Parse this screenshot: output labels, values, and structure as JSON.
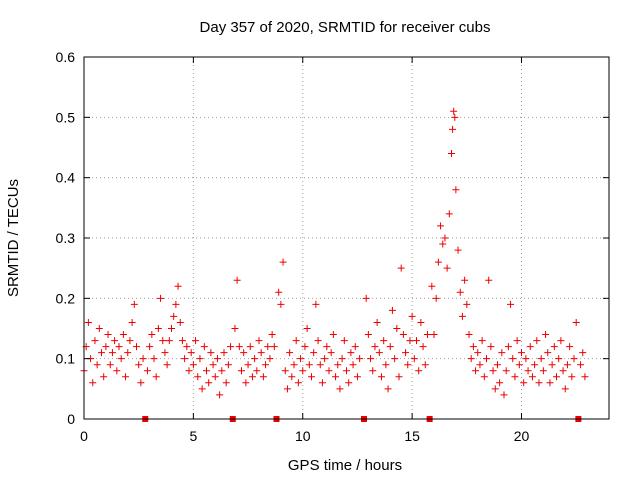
{
  "chart_data": {
    "type": "scatter",
    "title": "Day 357 of 2020, SRMTID for receiver cubs",
    "xlabel": "GPS time / hours",
    "ylabel": "SRMTID / TECUs",
    "xlim": [
      0,
      24
    ],
    "ylim": [
      0,
      0.6
    ],
    "xticks": [
      "0",
      "5",
      "10",
      "15",
      "20"
    ],
    "xtick_values": [
      0,
      5,
      10,
      15,
      20
    ],
    "yticks": [
      "0",
      "0.1",
      "0.2",
      "0.3",
      "0.4",
      "0.5",
      "0.6"
    ],
    "ytick_values": [
      0,
      0.1,
      0.2,
      0.3,
      0.4,
      0.5,
      0.6
    ],
    "grid": true,
    "marker": "plus",
    "color": "#ee0000",
    "data_gap_markers_x": [
      2.8,
      6.8,
      8.8,
      12.8,
      15.8,
      22.6
    ],
    "series": [
      {
        "name": "SRMTID",
        "points": [
          [
            0.0,
            0.08
          ],
          [
            0.1,
            0.12
          ],
          [
            0.2,
            0.16
          ],
          [
            0.3,
            0.1
          ],
          [
            0.4,
            0.06
          ],
          [
            0.5,
            0.13
          ],
          [
            0.6,
            0.09
          ],
          [
            0.7,
            0.15
          ],
          [
            0.8,
            0.11
          ],
          [
            0.9,
            0.07
          ],
          [
            1.0,
            0.12
          ],
          [
            1.1,
            0.14
          ],
          [
            1.2,
            0.09
          ],
          [
            1.3,
            0.11
          ],
          [
            1.4,
            0.13
          ],
          [
            1.5,
            0.08
          ],
          [
            1.6,
            0.12
          ],
          [
            1.7,
            0.1
          ],
          [
            1.8,
            0.14
          ],
          [
            1.9,
            0.07
          ],
          [
            2.0,
            0.11
          ],
          [
            2.1,
            0.13
          ],
          [
            2.2,
            0.16
          ],
          [
            2.3,
            0.19
          ],
          [
            2.4,
            0.12
          ],
          [
            2.5,
            0.09
          ],
          [
            2.6,
            0.06
          ],
          [
            2.7,
            0.1
          ],
          [
            2.9,
            0.08
          ],
          [
            3.0,
            0.12
          ],
          [
            3.1,
            0.14
          ],
          [
            3.2,
            0.1
          ],
          [
            3.3,
            0.07
          ],
          [
            3.4,
            0.15
          ],
          [
            3.5,
            0.2
          ],
          [
            3.6,
            0.13
          ],
          [
            3.7,
            0.11
          ],
          [
            3.8,
            0.09
          ],
          [
            3.9,
            0.13
          ],
          [
            4.0,
            0.15
          ],
          [
            4.1,
            0.17
          ],
          [
            4.2,
            0.19
          ],
          [
            4.3,
            0.22
          ],
          [
            4.4,
            0.16
          ],
          [
            4.5,
            0.13
          ],
          [
            4.6,
            0.1
          ],
          [
            4.7,
            0.12
          ],
          [
            4.8,
            0.08
          ],
          [
            4.9,
            0.11
          ],
          [
            5.0,
            0.09
          ],
          [
            5.1,
            0.13
          ],
          [
            5.2,
            0.07
          ],
          [
            5.3,
            0.1
          ],
          [
            5.4,
            0.05
          ],
          [
            5.5,
            0.12
          ],
          [
            5.6,
            0.08
          ],
          [
            5.7,
            0.06
          ],
          [
            5.8,
            0.11
          ],
          [
            5.9,
            0.09
          ],
          [
            6.0,
            0.07
          ],
          [
            6.1,
            0.1
          ],
          [
            6.2,
            0.04
          ],
          [
            6.3,
            0.08
          ],
          [
            6.4,
            0.11
          ],
          [
            6.5,
            0.06
          ],
          [
            6.6,
            0.09
          ],
          [
            6.7,
            0.12
          ],
          [
            6.9,
            0.15
          ],
          [
            7.0,
            0.23
          ],
          [
            7.1,
            0.12
          ],
          [
            7.2,
            0.08
          ],
          [
            7.3,
            0.11
          ],
          [
            7.4,
            0.06
          ],
          [
            7.5,
            0.09
          ],
          [
            7.6,
            0.12
          ],
          [
            7.7,
            0.07
          ],
          [
            7.8,
            0.1
          ],
          [
            7.9,
            0.08
          ],
          [
            8.0,
            0.13
          ],
          [
            8.1,
            0.11
          ],
          [
            8.2,
            0.07
          ],
          [
            8.3,
            0.09
          ],
          [
            8.4,
            0.12
          ],
          [
            8.5,
            0.1
          ],
          [
            8.6,
            0.14
          ],
          [
            8.7,
            0.12
          ],
          [
            8.9,
            0.21
          ],
          [
            9.0,
            0.19
          ],
          [
            9.1,
            0.26
          ],
          [
            9.2,
            0.08
          ],
          [
            9.3,
            0.05
          ],
          [
            9.4,
            0.11
          ],
          [
            9.5,
            0.07
          ],
          [
            9.6,
            0.09
          ],
          [
            9.7,
            0.13
          ],
          [
            9.8,
            0.06
          ],
          [
            9.9,
            0.1
          ],
          [
            10.0,
            0.08
          ],
          [
            10.1,
            0.12
          ],
          [
            10.2,
            0.15
          ],
          [
            10.3,
            0.09
          ],
          [
            10.4,
            0.07
          ],
          [
            10.5,
            0.11
          ],
          [
            10.6,
            0.19
          ],
          [
            10.7,
            0.13
          ],
          [
            10.8,
            0.09
          ],
          [
            10.9,
            0.06
          ],
          [
            11.0,
            0.1
          ],
          [
            11.1,
            0.12
          ],
          [
            11.2,
            0.08
          ],
          [
            11.3,
            0.11
          ],
          [
            11.4,
            0.14
          ],
          [
            11.5,
            0.07
          ],
          [
            11.6,
            0.09
          ],
          [
            11.7,
            0.05
          ],
          [
            11.8,
            0.1
          ],
          [
            11.9,
            0.13
          ],
          [
            12.0,
            0.08
          ],
          [
            12.1,
            0.06
          ],
          [
            12.2,
            0.11
          ],
          [
            12.3,
            0.09
          ],
          [
            12.4,
            0.12
          ],
          [
            12.5,
            0.07
          ],
          [
            12.6,
            0.1
          ],
          [
            12.9,
            0.2
          ],
          [
            13.0,
            0.14
          ],
          [
            13.1,
            0.1
          ],
          [
            13.2,
            0.08
          ],
          [
            13.3,
            0.12
          ],
          [
            13.4,
            0.16
          ],
          [
            13.5,
            0.11
          ],
          [
            13.6,
            0.07
          ],
          [
            13.7,
            0.13
          ],
          [
            13.8,
            0.09
          ],
          [
            13.9,
            0.05
          ],
          [
            14.0,
            0.12
          ],
          [
            14.1,
            0.18
          ],
          [
            14.2,
            0.1
          ],
          [
            14.3,
            0.15
          ],
          [
            14.4,
            0.07
          ],
          [
            14.5,
            0.25
          ],
          [
            14.6,
            0.14
          ],
          [
            14.7,
            0.11
          ],
          [
            14.8,
            0.09
          ],
          [
            14.9,
            0.13
          ],
          [
            15.0,
            0.17
          ],
          [
            15.1,
            0.1
          ],
          [
            15.2,
            0.13
          ],
          [
            15.3,
            0.08
          ],
          [
            15.4,
            0.16
          ],
          [
            15.5,
            0.12
          ],
          [
            15.6,
            0.09
          ],
          [
            15.7,
            0.14
          ],
          [
            15.9,
            0.22
          ],
          [
            16.0,
            0.14
          ],
          [
            16.1,
            0.2
          ],
          [
            16.2,
            0.26
          ],
          [
            16.3,
            0.32
          ],
          [
            16.4,
            0.29
          ],
          [
            16.5,
            0.3
          ],
          [
            16.6,
            0.25
          ],
          [
            16.7,
            0.34
          ],
          [
            16.8,
            0.44
          ],
          [
            16.85,
            0.48
          ],
          [
            16.9,
            0.51
          ],
          [
            16.95,
            0.5
          ],
          [
            17.0,
            0.38
          ],
          [
            17.1,
            0.28
          ],
          [
            17.2,
            0.21
          ],
          [
            17.3,
            0.17
          ],
          [
            17.4,
            0.23
          ],
          [
            17.5,
            0.19
          ],
          [
            17.6,
            0.14
          ],
          [
            17.7,
            0.1
          ],
          [
            17.8,
            0.12
          ],
          [
            17.9,
            0.08
          ],
          [
            18.0,
            0.11
          ],
          [
            18.1,
            0.09
          ],
          [
            18.2,
            0.13
          ],
          [
            18.3,
            0.07
          ],
          [
            18.4,
            0.1
          ],
          [
            18.5,
            0.23
          ],
          [
            18.6,
            0.12
          ],
          [
            18.7,
            0.08
          ],
          [
            18.8,
            0.05
          ],
          [
            18.9,
            0.09
          ],
          [
            19.0,
            0.06
          ],
          [
            19.1,
            0.11
          ],
          [
            19.2,
            0.04
          ],
          [
            19.3,
            0.08
          ],
          [
            19.4,
            0.12
          ],
          [
            19.5,
            0.19
          ],
          [
            19.6,
            0.1
          ],
          [
            19.7,
            0.07
          ],
          [
            19.8,
            0.13
          ],
          [
            19.9,
            0.09
          ],
          [
            20.0,
            0.11
          ],
          [
            20.1,
            0.06
          ],
          [
            20.2,
            0.1
          ],
          [
            20.3,
            0.08
          ],
          [
            20.4,
            0.12
          ],
          [
            20.5,
            0.07
          ],
          [
            20.6,
            0.09
          ],
          [
            20.7,
            0.13
          ],
          [
            20.8,
            0.06
          ],
          [
            20.9,
            0.1
          ],
          [
            21.0,
            0.08
          ],
          [
            21.1,
            0.14
          ],
          [
            21.2,
            0.11
          ],
          [
            21.3,
            0.06
          ],
          [
            21.4,
            0.09
          ],
          [
            21.5,
            0.12
          ],
          [
            21.6,
            0.07
          ],
          [
            21.7,
            0.1
          ],
          [
            21.8,
            0.13
          ],
          [
            21.9,
            0.08
          ],
          [
            22.0,
            0.05
          ],
          [
            22.1,
            0.09
          ],
          [
            22.2,
            0.12
          ],
          [
            22.3,
            0.07
          ],
          [
            22.4,
            0.1
          ],
          [
            22.5,
            0.16
          ],
          [
            22.7,
            0.09
          ],
          [
            22.8,
            0.11
          ],
          [
            22.9,
            0.07
          ]
        ]
      }
    ]
  }
}
